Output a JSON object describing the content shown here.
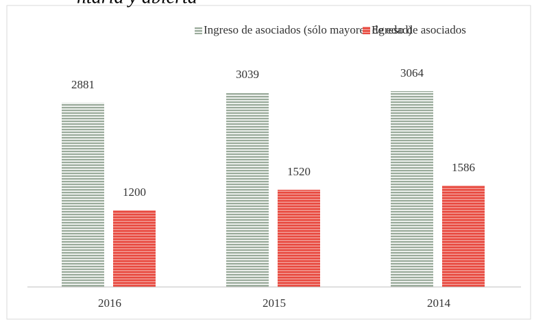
{
  "chart_data": {
    "type": "bar",
    "title": "ntaria y abierta",
    "categories": [
      "2016",
      "2015",
      "2014"
    ],
    "series": [
      {
        "name": "Ingreso de asociados (sólo mayores de edad)",
        "color": "#9aab9b",
        "values": [
          2881,
          3039,
          3064
        ]
      },
      {
        "name": "Egreso de asociados",
        "color": "#e8493f",
        "values": [
          1200,
          1520,
          1586
        ]
      }
    ]
  }
}
